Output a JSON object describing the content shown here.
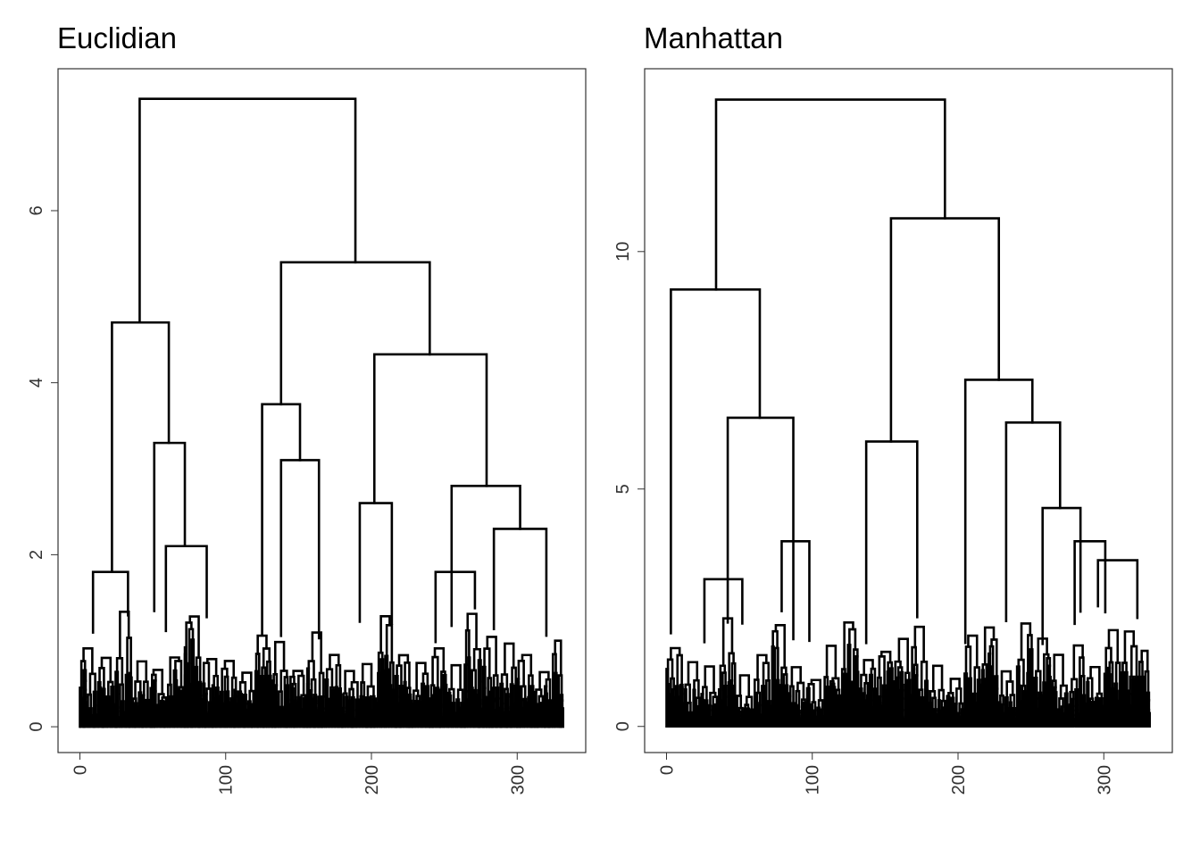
{
  "chart_data": [
    {
      "type": "dendrogram",
      "title": "Euclidian",
      "xlabel": "",
      "ylabel": "",
      "n_leaves": 333,
      "xlim": [
        -15,
        347
      ],
      "ylim": [
        -0.3,
        7.65
      ],
      "x_ticks": [
        0,
        100,
        200,
        300
      ],
      "y_ticks": [
        0,
        2,
        4,
        6
      ],
      "grid": false,
      "legend": "none",
      "line_color": "#000000",
      "top_merges": [
        {
          "left_x": 41,
          "right_x": 189,
          "height": 7.3
        },
        {
          "left_x": 22,
          "right_x": 61,
          "height": 4.7
        },
        {
          "left_x": 138,
          "right_x": 240,
          "height": 5.4
        },
        {
          "left_x": 125,
          "right_x": 151,
          "height": 3.75
        },
        {
          "left_x": 202,
          "right_x": 279,
          "height": 4.33
        },
        {
          "left_x": 51,
          "right_x": 72,
          "height": 3.3
        },
        {
          "left_x": 255,
          "right_x": 302,
          "height": 2.8
        },
        {
          "left_x": 9,
          "right_x": 33,
          "height": 1.8
        },
        {
          "left_x": 59,
          "right_x": 87,
          "height": 2.1
        },
        {
          "left_x": 138,
          "right_x": 164,
          "height": 3.1
        },
        {
          "left_x": 192,
          "right_x": 214,
          "height": 2.6
        },
        {
          "left_x": 284,
          "right_x": 320,
          "height": 2.3
        },
        {
          "left_x": 244,
          "right_x": 271,
          "height": 1.8
        }
      ]
    },
    {
      "type": "dendrogram",
      "title": "Manhattan",
      "xlabel": "",
      "ylabel": "",
      "n_leaves": 333,
      "xlim": [
        -15,
        347
      ],
      "ylim": [
        -0.55,
        13.85
      ],
      "x_ticks": [
        0,
        100,
        200,
        300
      ],
      "y_ticks": [
        0,
        5,
        10
      ],
      "grid": false,
      "legend": "none",
      "line_color": "#000000",
      "top_merges": [
        {
          "left_x": 34,
          "right_x": 191,
          "height": 13.2
        },
        {
          "left_x": 3,
          "right_x": 64,
          "height": 9.2
        },
        {
          "left_x": 154,
          "right_x": 228,
          "height": 10.7
        },
        {
          "left_x": 42,
          "right_x": 87,
          "height": 6.5
        },
        {
          "left_x": 205,
          "right_x": 251,
          "height": 7.3
        },
        {
          "left_x": 137,
          "right_x": 172,
          "height": 6.0
        },
        {
          "left_x": 233,
          "right_x": 270,
          "height": 6.4
        },
        {
          "left_x": 258,
          "right_x": 284,
          "height": 4.6
        },
        {
          "left_x": 79,
          "right_x": 98,
          "height": 3.9
        },
        {
          "left_x": 26,
          "right_x": 52,
          "height": 3.1
        },
        {
          "left_x": 280,
          "right_x": 301,
          "height": 3.9
        },
        {
          "left_x": 296,
          "right_x": 323,
          "height": 3.5
        }
      ]
    }
  ]
}
